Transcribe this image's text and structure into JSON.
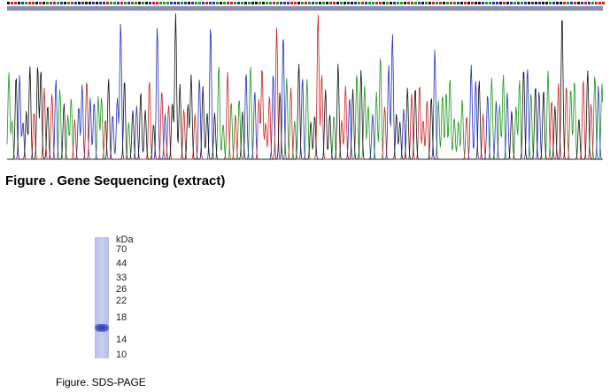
{
  "gene_figure": {
    "caption": "Figure . Gene Sequencing (extract)"
  },
  "sds_page": {
    "caption": "Figure. SDS-PAGE",
    "unit": "kDa",
    "markers": [
      "70",
      "44",
      "33",
      "26",
      "22",
      "18",
      "14",
      "10"
    ]
  }
}
